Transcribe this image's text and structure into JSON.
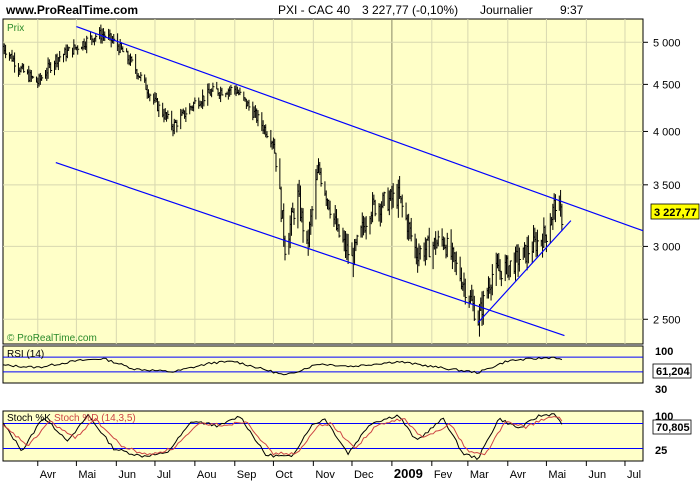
{
  "header": {
    "site": "www.ProRealTime.com",
    "ticker": "PXI - CAC 40",
    "quote": "3 227,77 (-0,10%)",
    "period": "Journalier",
    "time": "9:37"
  },
  "colors": {
    "panel_bg": "#ffffc8",
    "frame": "#000000",
    "price": "#000000",
    "trend_lines": "#0000ff",
    "rsi_line": "#000000",
    "stoch_k": "#000000",
    "stoch_d": "#cc4444",
    "grid": "#d8d8b0",
    "level_lines": "#0000ff"
  },
  "chart_data": [
    {
      "type": "line",
      "panel": "price",
      "label": "Prix",
      "watermark": "© ProRealTime.com",
      "scale": "log",
      "ylim": [
        2350,
        5300
      ],
      "y_ticks": [
        2500,
        3000,
        3500,
        4000,
        4500,
        5000
      ],
      "y_tick_labels": [
        "2 500",
        "3 000",
        "3 500",
        "4 000",
        "4 500",
        "5 000"
      ],
      "last_value_label": "3 227,77",
      "x_tick_labels": [
        "Avr",
        "Mai",
        "Jun",
        "Jul",
        "Aou",
        "Sep",
        "Oct",
        "Nov",
        "Dec",
        "2009",
        "Fev",
        "Mar",
        "Avr",
        "Mai",
        "Jun",
        "Jul"
      ],
      "x_tick_dates": [
        "2008-04-01",
        "2008-05-01",
        "2008-06-01",
        "2008-07-01",
        "2008-08-01",
        "2008-09-01",
        "2008-10-01",
        "2008-11-01",
        "2008-12-01",
        "2009-01-01",
        "2009-02-01",
        "2009-03-01",
        "2009-04-01",
        "2009-05-01",
        "2009-06-01",
        "2009-07-01"
      ],
      "x_range": [
        "2008-03-05",
        "2009-07-15"
      ],
      "series": [
        {
          "values": [
            [
              "2008-03-05",
              4950
            ],
            [
              "2008-03-20",
              4650
            ],
            [
              "2008-04-01",
              4520
            ],
            [
              "2008-04-15",
              4800
            ],
            [
              "2008-05-01",
              4940
            ],
            [
              "2008-05-15",
              5080
            ],
            [
              "2008-05-22",
              5100
            ],
            [
              "2008-06-01",
              4980
            ],
            [
              "2008-06-15",
              4700
            ],
            [
              "2008-07-01",
              4300
            ],
            [
              "2008-07-15",
              4050
            ],
            [
              "2008-08-01",
              4300
            ],
            [
              "2008-08-15",
              4420
            ],
            [
              "2008-09-01",
              4450
            ],
            [
              "2008-09-15",
              4200
            ],
            [
              "2008-10-01",
              3900
            ],
            [
              "2008-10-10",
              3000
            ],
            [
              "2008-10-20",
              3400
            ],
            [
              "2008-10-27",
              2980
            ],
            [
              "2008-11-05",
              3650
            ],
            [
              "2008-11-20",
              3100
            ],
            [
              "2008-12-01",
              2900
            ],
            [
              "2008-12-15",
              3300
            ],
            [
              "2009-01-06",
              3400
            ],
            [
              "2009-01-20",
              2950
            ],
            [
              "2009-02-10",
              3050
            ],
            [
              "2009-02-25",
              2750
            ],
            [
              "2009-03-09",
              2500
            ],
            [
              "2009-03-20",
              2800
            ],
            [
              "2009-04-01",
              2850
            ],
            [
              "2009-04-15",
              2950
            ],
            [
              "2009-05-01",
              3100
            ],
            [
              "2009-05-08",
              3350
            ],
            [
              "2009-05-13",
              3228
            ]
          ]
        }
      ],
      "trendlines": [
        {
          "from": [
            "2008-05-01",
            5200
          ],
          "to": [
            "2009-07-15",
            3120
          ]
        },
        {
          "from": [
            "2008-04-15",
            3700
          ],
          "to": [
            "2009-05-15",
            2400
          ]
        },
        {
          "from": [
            "2009-03-09",
            2480
          ],
          "to": [
            "2009-05-20",
            3200
          ]
        }
      ]
    },
    {
      "type": "line",
      "panel": "rsi",
      "label": "RSI (14)",
      "ylim": [
        0,
        100
      ],
      "y_tick_labels": [
        "100",
        "30"
      ],
      "levels": [
        70,
        30
      ],
      "last_value_label": "61,204",
      "series": [
        {
          "values": [
            [
              "2008-03-05",
              48
            ],
            [
              "2008-04-01",
              42
            ],
            [
              "2008-05-01",
              60
            ],
            [
              "2008-05-22",
              66
            ],
            [
              "2008-06-15",
              38
            ],
            [
              "2008-07-15",
              30
            ],
            [
              "2008-08-15",
              55
            ],
            [
              "2008-09-01",
              58
            ],
            [
              "2008-10-01",
              30
            ],
            [
              "2008-10-10",
              20
            ],
            [
              "2008-11-05",
              52
            ],
            [
              "2008-12-01",
              45
            ],
            [
              "2009-01-06",
              58
            ],
            [
              "2009-02-10",
              40
            ],
            [
              "2009-03-09",
              28
            ],
            [
              "2009-04-01",
              60
            ],
            [
              "2009-05-08",
              70
            ],
            [
              "2009-05-13",
              61
            ]
          ]
        }
      ]
    },
    {
      "type": "line",
      "panel": "stochastic",
      "label": "Stoch %K",
      "label_d": "Stoch %D (14,3,5)",
      "ylim": [
        0,
        100
      ],
      "y_tick_labels": [
        "100",
        "25"
      ],
      "levels": [
        75,
        25
      ],
      "last_value_label": "70,805",
      "series": [
        {
          "name": "Stoch %K",
          "values": [
            [
              "2008-03-05",
              75
            ],
            [
              "2008-03-20",
              20
            ],
            [
              "2008-04-05",
              88
            ],
            [
              "2008-04-25",
              40
            ],
            [
              "2008-05-10",
              92
            ],
            [
              "2008-05-30",
              25
            ],
            [
              "2008-06-20",
              10
            ],
            [
              "2008-07-10",
              15
            ],
            [
              "2008-07-30",
              80
            ],
            [
              "2008-08-20",
              70
            ],
            [
              "2008-09-05",
              90
            ],
            [
              "2008-09-25",
              12
            ],
            [
              "2008-10-15",
              8
            ],
            [
              "2008-10-30",
              70
            ],
            [
              "2008-11-10",
              85
            ],
            [
              "2008-11-28",
              15
            ],
            [
              "2008-12-15",
              75
            ],
            [
              "2009-01-06",
              92
            ],
            [
              "2009-01-20",
              40
            ],
            [
              "2009-02-10",
              85
            ],
            [
              "2009-02-25",
              15
            ],
            [
              "2009-03-09",
              5
            ],
            [
              "2009-03-25",
              85
            ],
            [
              "2009-04-10",
              65
            ],
            [
              "2009-04-25",
              90
            ],
            [
              "2009-05-08",
              95
            ],
            [
              "2009-05-13",
              71
            ]
          ]
        },
        {
          "name": "Stoch %D (14,3,5)",
          "values": [
            [
              "2008-03-05",
              70
            ],
            [
              "2008-03-25",
              30
            ],
            [
              "2008-04-10",
              80
            ],
            [
              "2008-04-30",
              45
            ],
            [
              "2008-05-15",
              85
            ],
            [
              "2008-06-05",
              30
            ],
            [
              "2008-06-25",
              12
            ],
            [
              "2008-07-15",
              25
            ],
            [
              "2008-08-05",
              75
            ],
            [
              "2008-08-25",
              72
            ],
            [
              "2008-09-10",
              80
            ],
            [
              "2008-09-30",
              15
            ],
            [
              "2008-10-20",
              15
            ],
            [
              "2008-11-05",
              72
            ],
            [
              "2008-11-15",
              75
            ],
            [
              "2008-12-03",
              25
            ],
            [
              "2008-12-20",
              70
            ],
            [
              "2009-01-10",
              85
            ],
            [
              "2009-01-25",
              45
            ],
            [
              "2009-02-15",
              75
            ],
            [
              "2009-03-01",
              20
            ],
            [
              "2009-03-14",
              12
            ],
            [
              "2009-03-30",
              78
            ],
            [
              "2009-04-15",
              68
            ],
            [
              "2009-04-30",
              85
            ],
            [
              "2009-05-10",
              88
            ],
            [
              "2009-05-13",
              78
            ]
          ]
        }
      ]
    }
  ]
}
